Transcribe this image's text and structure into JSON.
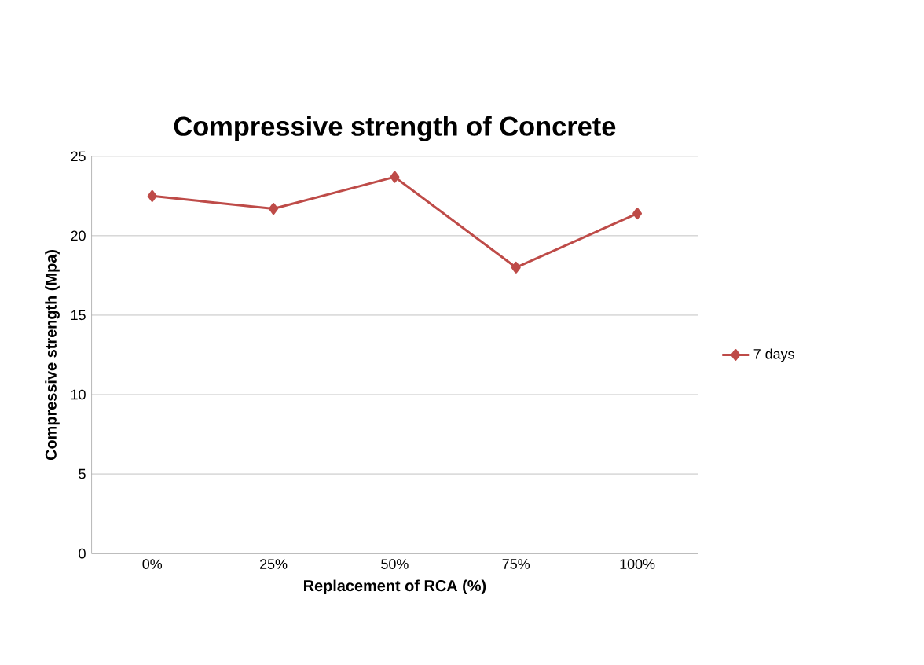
{
  "chart_data": {
    "type": "line",
    "title": "Compressive strength of Concrete",
    "xlabel": "Replacement of RCA (%)",
    "ylabel": "Compressive strength (Mpa)",
    "categories": [
      "0%",
      "25%",
      "50%",
      "75%",
      "100%"
    ],
    "series": [
      {
        "name": "7 days",
        "color": "#be4b48",
        "values": [
          22.5,
          21.7,
          23.7,
          18.0,
          21.4
        ]
      }
    ],
    "ylim": [
      0,
      25
    ],
    "yticks": [
      0,
      5,
      10,
      15,
      20,
      25
    ],
    "grid": "y",
    "legend": "right",
    "marker": "diamond",
    "line_style": "solid"
  }
}
